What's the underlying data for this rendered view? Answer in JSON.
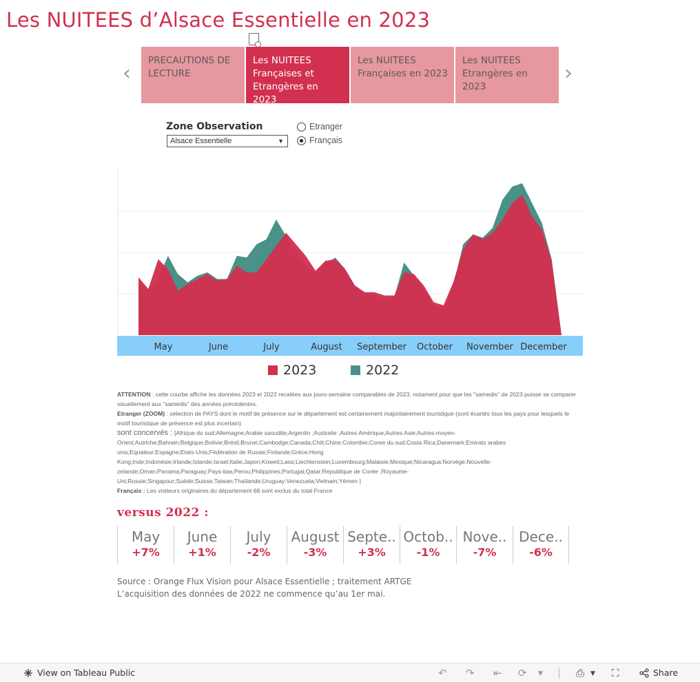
{
  "title": "Les NUITEES d’Alsace Essentielle en 2023",
  "tabs": [
    {
      "label": "PRECAUTIONS DE LECTURE",
      "active": false
    },
    {
      "label": "Les NUITEES Françaises et Etrangères en 2023",
      "active": true
    },
    {
      "label": "Les NUITEES Françaises en 2023",
      "active": false
    },
    {
      "label": "Les NUITEES Etrangères en 2023",
      "active": false
    }
  ],
  "filters": {
    "zone_label": "Zone Observation",
    "zone_value": "Alsace Essentielle",
    "radio_options": [
      "Etranger",
      "Français"
    ],
    "radio_selected": "Français"
  },
  "colors": {
    "accent": "#d1304f",
    "series_2023": "#d1304f",
    "series_2022": "#4a9187",
    "axis_band": "#87cefa",
    "tab_inactive": "#e6979f"
  },
  "chart_data": {
    "type": "area",
    "x_tick_labels": [
      "May",
      "June",
      "July",
      "August",
      "September",
      "October",
      "November",
      "December"
    ],
    "y_range": [
      0,
      100
    ],
    "y_gridlines": [
      25,
      50,
      75
    ],
    "grid": true,
    "legend_placement": "bottom",
    "series": [
      {
        "name": "2023",
        "x": [
          0,
          1,
          2,
          3,
          4,
          5,
          6,
          7,
          8,
          9,
          10,
          11,
          12,
          13,
          14,
          15,
          16,
          17,
          18,
          19,
          20,
          21,
          22,
          23,
          24,
          25,
          26,
          27,
          28,
          29,
          30,
          31,
          32,
          33,
          34,
          35,
          36,
          37,
          38,
          39,
          40,
          41,
          42,
          43
        ],
        "values": [
          35,
          28,
          46,
          40,
          27,
          31,
          34,
          37,
          33,
          34,
          42,
          38,
          38,
          46,
          54,
          62,
          55,
          48,
          39,
          45,
          46,
          40,
          30,
          26,
          26,
          24,
          24,
          38,
          37,
          30,
          20,
          18,
          32,
          52,
          61,
          58,
          62,
          70,
          80,
          85,
          72,
          64,
          45,
          0
        ]
      },
      {
        "name": "2022",
        "x": [
          0,
          1,
          2,
          3,
          4,
          5,
          6,
          7,
          8,
          9,
          10,
          11,
          12,
          13,
          14,
          15,
          16,
          17,
          18,
          19,
          20,
          21,
          22,
          23,
          24,
          25,
          26,
          27,
          28,
          29,
          30,
          31,
          32,
          33,
          34,
          35,
          36,
          37,
          38,
          39,
          40,
          41,
          42,
          43
        ],
        "values": [
          32,
          27,
          34,
          48,
          37,
          32,
          36,
          38,
          34,
          34,
          48,
          47,
          55,
          58,
          70,
          60,
          50,
          42,
          38,
          43,
          47,
          40,
          30,
          26,
          24,
          22,
          23,
          44,
          36,
          28,
          18,
          16,
          30,
          55,
          61,
          59,
          65,
          82,
          90,
          92,
          80,
          68,
          46,
          0
        ]
      }
    ]
  },
  "notes": {
    "attention_label": "ATTENTION",
    "attention_text": " : cette courbe affiche les données 2023 et 2022 recalées aux jours-semaine comparables de 2023, notament pour que les \"samedis\" de 2023 puisse se comparer visuellement aux \"samedis\" des années précédentes.",
    "etranger_label": "Etranger (ZOOM)",
    "etranger_text": " : sélection de PAYS dont le motif de présence sur le département est certainement majoritairement  touristique (sont écartés tous les pays pour lesquels le motif touristique de présence est plus incertain)",
    "concernes_label": "sont concervés : ",
    "concernes_text": "[Afrique du sud;Allemagne;Arabie saoudite;Argentin ;Australie ;Autres Amérique;Autres Asie;Autres-moyen-Orient;Autriche;Bahrein;Belgique;Bolivie;Brésil;Brunei;Cambodge;Canada;Chili;Chine;Colombie;Coree du sud;Costa Rica;Danemark;Emirats arabes unis;Equateur;Espagne;Etats-Unis;Fédération de Russie;Finlande;Grèce;Hong Kong;Inde;Indonésie;Irlande;Islande;Israel;Italie;Japon;Koweit;Laos;Liechtenstein;Luxembourg;Malaisie;Mexique;Nicaragua;Norvège;Nouvelle-zelande;Oman;Panama;Paraguay;Pays-bas;Perou;Philippines;Portugal;Qatar;Republique de Corée ;Royaume-Uni;Russie;Singapour;Suède;Suisse;Taiwan;Thaïlande;Uruguay;Venezuela;Vietnam;Yémen ]",
    "francais_label": "Français : ",
    "francais_text": " Les visiteurs originaires du département 68 sont exclus du total France"
  },
  "versus": {
    "label": "versus  2022  :",
    "months": [
      {
        "name": "May",
        "value": "+7%"
      },
      {
        "name": "June",
        "value": "+1%"
      },
      {
        "name": "July",
        "value": "-2%"
      },
      {
        "name": "August",
        "value": "-3%"
      },
      {
        "name": "Septe..",
        "value": "+3%"
      },
      {
        "name": "Octob..",
        "value": "-1%"
      },
      {
        "name": "Nove..",
        "value": "-7%"
      },
      {
        "name": "Dece..",
        "value": "-6%"
      }
    ]
  },
  "source": {
    "line1": "Source : Orange Flux Vision pour Alsace Essentielle  ; traitement ARTGE",
    "line2": "L’acquisition des données de 2022 ne commence qu’au 1er mai."
  },
  "footer": {
    "view_label": "View on Tableau Public",
    "share_label": "Share",
    "icons": [
      "tableau-logo-icon",
      "undo-icon",
      "redo-icon",
      "revert-icon",
      "refresh-icon",
      "download-icon",
      "fullscreen-icon",
      "share-icon"
    ]
  }
}
